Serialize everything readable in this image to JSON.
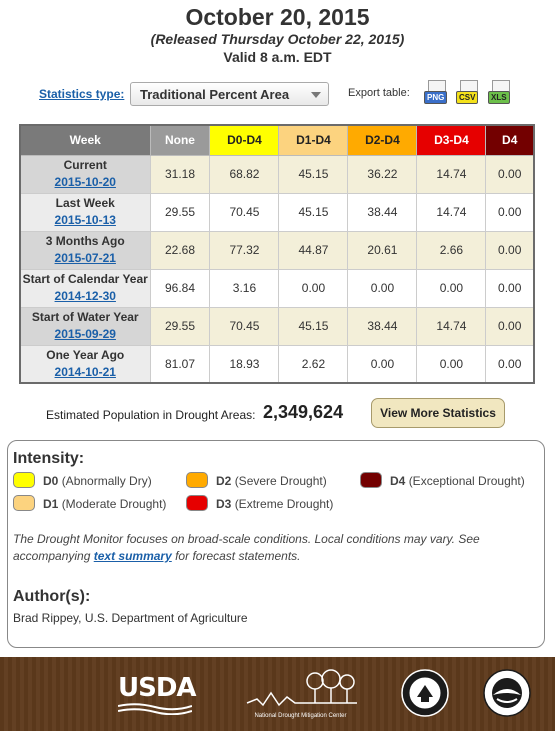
{
  "header": {
    "title": "October 20, 2015",
    "released": "(Released Thursday October 22, 2015)",
    "valid": "Valid 8 a.m. EDT"
  },
  "controls": {
    "statistics_type_label": "Statistics type:",
    "statistics_type_value": "Traditional Percent Area",
    "export_label": "Export table:",
    "export_png": "PNG",
    "export_csv": "CSV",
    "export_xls": "XLS"
  },
  "table": {
    "headers": [
      "Week",
      "None",
      "D0-D4",
      "D1-D4",
      "D2-D4",
      "D3-D4",
      "D4"
    ],
    "header_colors": [
      "#7a7a7a",
      "#9a9a9a",
      "#ffff00",
      "#fcd37f",
      "#ffaa00",
      "#e60000",
      "#730000"
    ],
    "header_text_colors": [
      "#ffffff",
      "#ffffff",
      "#222222",
      "#222222",
      "#222222",
      "#ffffff",
      "#ffffff"
    ],
    "rows": [
      {
        "label": "Current",
        "date": "2015-10-20",
        "values": [
          "31.18",
          "68.82",
          "45.15",
          "36.22",
          "14.74",
          "0.00"
        ]
      },
      {
        "label": "Last Week",
        "date": "2015-10-13",
        "values": [
          "29.55",
          "70.45",
          "45.15",
          "38.44",
          "14.74",
          "0.00"
        ]
      },
      {
        "label": "3 Months Ago",
        "date": "2015-07-21",
        "values": [
          "22.68",
          "77.32",
          "44.87",
          "20.61",
          "2.66",
          "0.00"
        ]
      },
      {
        "label": "Start of Calendar Year",
        "date": "2014-12-30",
        "values": [
          "96.84",
          "3.16",
          "0.00",
          "0.00",
          "0.00",
          "0.00"
        ]
      },
      {
        "label": "Start of Water Year",
        "date": "2015-09-29",
        "values": [
          "29.55",
          "70.45",
          "45.15",
          "38.44",
          "14.74",
          "0.00"
        ]
      },
      {
        "label": "One Year Ago",
        "date": "2014-10-21",
        "values": [
          "81.07",
          "18.93",
          "2.62",
          "0.00",
          "0.00",
          "0.00"
        ]
      }
    ]
  },
  "population": {
    "label": "Estimated Population in Drought Areas:",
    "value": "2,349,624",
    "button": "View More Statistics"
  },
  "legend": {
    "title": "Intensity:",
    "items": [
      {
        "code": "D0",
        "desc": "(Abnormally Dry)",
        "color": "#ffff00"
      },
      {
        "code": "D1",
        "desc": "(Moderate Drought)",
        "color": "#fcd37f"
      },
      {
        "code": "D2",
        "desc": "(Severe Drought)",
        "color": "#ffaa00"
      },
      {
        "code": "D3",
        "desc": "(Extreme Drought)",
        "color": "#e60000"
      },
      {
        "code": "D4",
        "desc": "(Exceptional Drought)",
        "color": "#730000"
      }
    ],
    "note_before": "The Drought Monitor focuses on broad-scale conditions. Local conditions may vary. See accompanying ",
    "note_link": "text summary",
    "note_after": " for forecast statements.",
    "authors_title": "Author(s):",
    "author": "Brad Rippey, U.S. Department of Agriculture"
  },
  "footer": {
    "usda": "USDA",
    "ndmc": "National Drought Mitigation Center",
    "icons": [
      "usda-logo",
      "ndmc-logo",
      "commerce-seal",
      "noaa-seal"
    ]
  }
}
